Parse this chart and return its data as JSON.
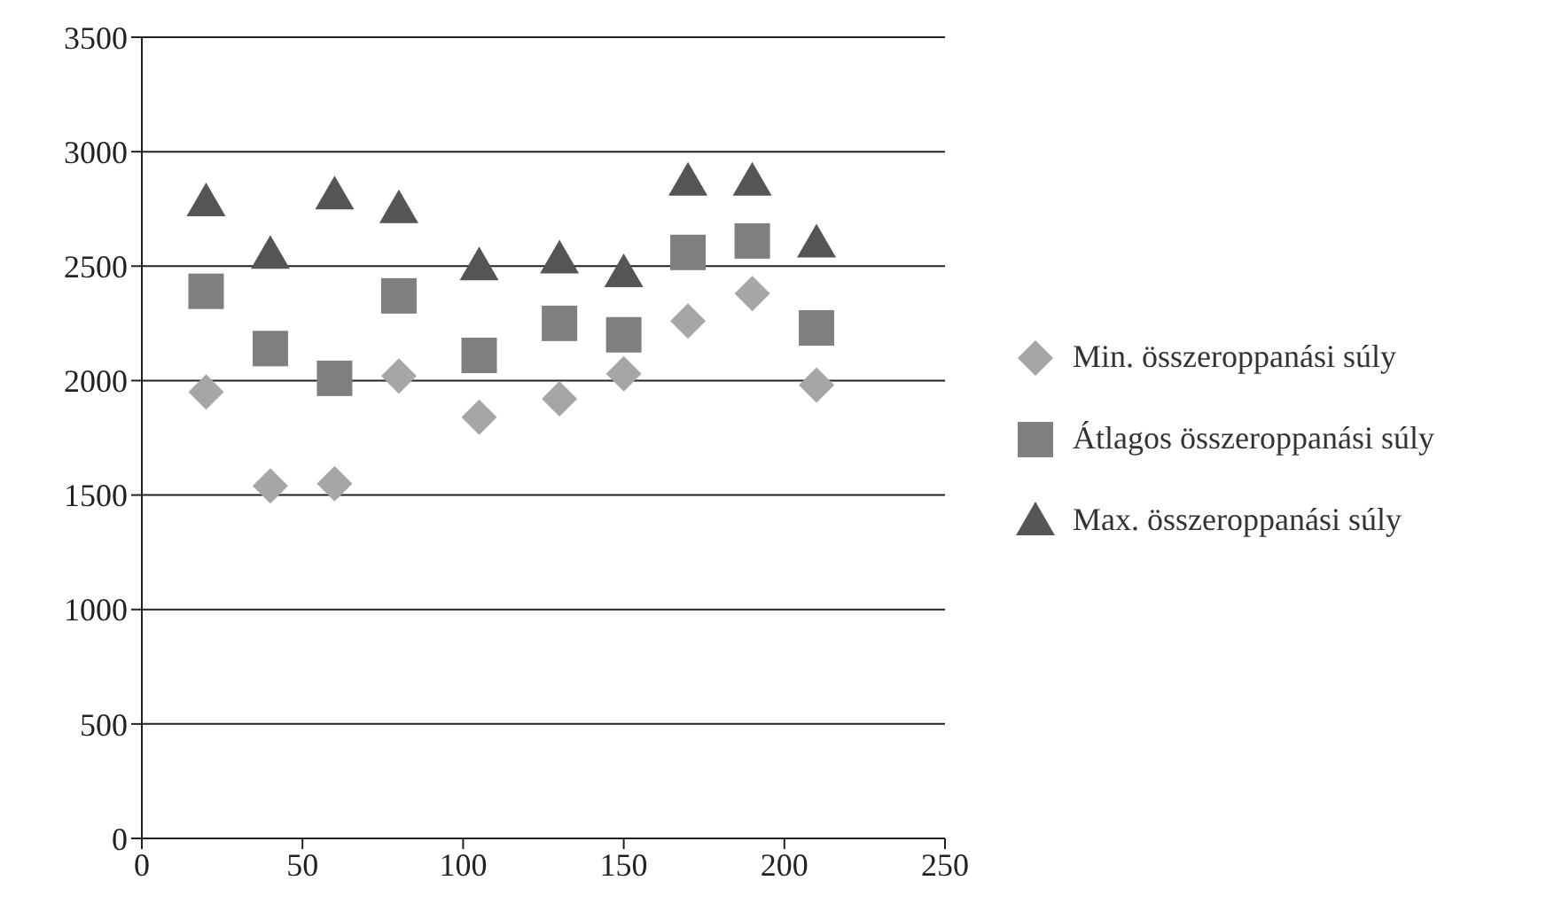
{
  "chart_data": {
    "type": "scatter",
    "x": [
      20,
      40,
      60,
      80,
      105,
      130,
      150,
      170,
      190,
      210
    ],
    "series": [
      {
        "name": "Min. összeroppanási súly",
        "color": "#a6a6a6",
        "marker": "diamond",
        "values": [
          1950,
          1540,
          1550,
          2020,
          1840,
          1920,
          2030,
          2260,
          2380,
          1980
        ]
      },
      {
        "name": "Átlagos összeroppanási súly",
        "color": "#7f7f7f",
        "marker": "square",
        "values": [
          2390,
          2140,
          2010,
          2370,
          2110,
          2250,
          2200,
          2560,
          2610,
          2230
        ]
      },
      {
        "name": "Max. összeroppanási súly",
        "color": "#555555",
        "marker": "triangle",
        "values": [
          2780,
          2550,
          2810,
          2750,
          2500,
          2530,
          2470,
          2870,
          2870,
          2600
        ]
      }
    ],
    "xlim": [
      0,
      250
    ],
    "xticks": [
      0,
      50,
      100,
      150,
      200,
      250
    ],
    "ylim": [
      0,
      3500
    ],
    "yticks": [
      0,
      500,
      1000,
      1500,
      2000,
      2500,
      3000,
      3500
    ],
    "grid": "y",
    "legend": "right"
  }
}
